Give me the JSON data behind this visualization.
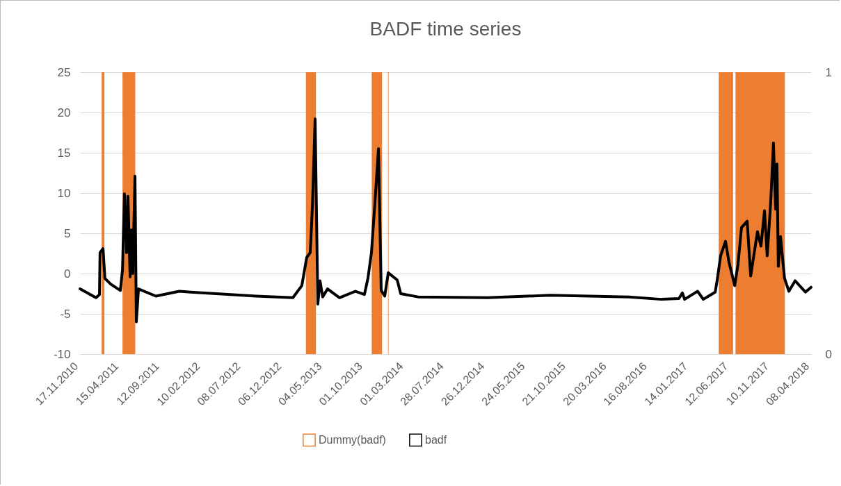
{
  "chart_data": {
    "type": "line",
    "title": "BADF time series",
    "xlim": [
      "2010-11-17",
      "2018-04-08"
    ],
    "xticks": [
      {
        "value": "2010-11-17",
        "label": "17.11.2010"
      },
      {
        "value": "2011-04-15",
        "label": "15.04.2011"
      },
      {
        "value": "2011-09-12",
        "label": "12.09.2011"
      },
      {
        "value": "2012-02-10",
        "label": "10.02.2012"
      },
      {
        "value": "2012-07-08",
        "label": "08.07.2012"
      },
      {
        "value": "2012-12-06",
        "label": "06.12.2012"
      },
      {
        "value": "2013-05-04",
        "label": "04.05.2013"
      },
      {
        "value": "2013-10-01",
        "label": "01.10.2013"
      },
      {
        "value": "2014-03-01",
        "label": "01.03.2014"
      },
      {
        "value": "2014-07-28",
        "label": "28.07.2014"
      },
      {
        "value": "2014-12-26",
        "label": "26.12.2014"
      },
      {
        "value": "2015-05-24",
        "label": "24.05.2015"
      },
      {
        "value": "2015-10-21",
        "label": "21.10.2015"
      },
      {
        "value": "2016-03-20",
        "label": "20.03.2016"
      },
      {
        "value": "2016-08-16",
        "label": "16.08.2016"
      },
      {
        "value": "2017-01-14",
        "label": "14.01.2017"
      },
      {
        "value": "2017-06-12",
        "label": "12.06.2017"
      },
      {
        "value": "2017-11-10",
        "label": "10.11.2017"
      },
      {
        "value": "2018-04-08",
        "label": "08.04.2018"
      }
    ],
    "ylim": [
      -10,
      25
    ],
    "yticks": [
      -10,
      -5,
      0,
      5,
      10,
      15,
      20,
      25
    ],
    "y2lim": [
      0,
      1
    ],
    "y2ticks": [
      0,
      1
    ],
    "grid": "y",
    "legend": "bottom",
    "bands": [
      {
        "axis": "x",
        "from": "2011-02-05",
        "to": "2011-02-15",
        "label": "Dummy(badf)",
        "color": "#ed7d31"
      },
      {
        "axis": "x",
        "from": "2011-04-23",
        "to": "2011-06-09",
        "color": "#ed7d31"
      },
      {
        "axis": "x",
        "from": "2013-02-28",
        "to": "2013-04-06",
        "color": "#ed7d31"
      },
      {
        "axis": "x",
        "from": "2013-10-29",
        "to": "2013-12-06",
        "color": "#ed7d31"
      },
      {
        "axis": "x",
        "from": "2013-12-28",
        "to": "2013-12-30",
        "color": "#ed7d31"
      },
      {
        "axis": "x",
        "from": "2017-05-02",
        "to": "2017-06-24",
        "color": "#ed7d31"
      },
      {
        "axis": "x",
        "from": "2017-07-03",
        "to": "2018-01-01",
        "color": "#ed7d31"
      }
    ],
    "series": [
      {
        "name": "badf",
        "color": "#000000",
        "x": [
          "2010-11-17",
          "2011-01-15",
          "2011-01-28",
          "2011-01-30",
          "2011-02-10",
          "2011-02-17",
          "2011-03-10",
          "2011-04-15",
          "2011-04-23",
          "2011-04-30",
          "2011-05-08",
          "2011-05-13",
          "2011-05-21",
          "2011-05-26",
          "2011-05-31",
          "2011-06-08",
          "2011-06-13",
          "2011-06-21",
          "2011-08-24",
          "2011-11-19",
          "2011-12-30",
          "2012-08-28",
          "2013-01-11",
          "2013-02-13",
          "2013-03-03",
          "2013-03-16",
          "2013-03-24",
          "2013-04-03",
          "2013-04-13",
          "2013-04-21",
          "2013-05-01",
          "2013-05-19",
          "2013-07-02",
          "2013-08-30",
          "2013-10-02",
          "2013-10-15",
          "2013-10-28",
          "2013-11-10",
          "2013-11-23",
          "2013-12-03",
          "2013-12-16",
          "2013-12-29",
          "2014-01-31",
          "2014-02-13",
          "2014-04-18",
          "2014-12-31",
          "2015-08-19",
          "2016-06-04",
          "2016-10-03",
          "2016-12-06",
          "2016-12-19",
          "2016-12-27",
          "2017-02-13",
          "2017-03-06",
          "2017-04-19",
          "2017-04-26",
          "2017-05-09",
          "2017-05-27",
          "2017-06-09",
          "2017-06-30",
          "2017-07-12",
          "2017-07-25",
          "2017-08-15",
          "2017-08-28",
          "2017-09-22",
          "2017-10-05",
          "2017-10-18",
          "2017-10-28",
          "2017-11-10",
          "2017-11-20",
          "2017-11-28",
          "2017-12-03",
          "2017-12-08",
          "2017-12-16",
          "2017-12-31",
          "2018-01-16",
          "2018-02-08",
          "2018-03-18",
          "2018-04-08"
        ],
        "values": [
          -1.9,
          -3.0,
          -2.6,
          2.6,
          3.1,
          -0.6,
          -1.3,
          -2.1,
          0.5,
          9.9,
          2.6,
          9.6,
          -0.4,
          5.4,
          0,
          12.1,
          -6.0,
          -1.9,
          -2.8,
          -2.2,
          -2.3,
          -2.8,
          -3.0,
          -1.5,
          2.0,
          2.6,
          8.3,
          19.2,
          -3.8,
          -0.9,
          -2.9,
          -1.9,
          -3.0,
          -2.2,
          -2.6,
          -0.6,
          2.6,
          8.9,
          15.5,
          -2.1,
          -2.8,
          0.1,
          -0.8,
          -2.5,
          -2.9,
          -3.0,
          -2.7,
          -2.9,
          -3.2,
          -3.1,
          -2.4,
          -3.2,
          -2.2,
          -3.2,
          -2.3,
          -0.9,
          2.2,
          4.0,
          1.4,
          -1.5,
          1.1,
          5.7,
          6.5,
          -0.3,
          5.2,
          3.4,
          7.8,
          2.2,
          8.9,
          16.2,
          8.0,
          13.6,
          0.9,
          4.6,
          -0.6,
          -2.2,
          -0.9,
          -2.3,
          -1.7
        ]
      }
    ]
  }
}
